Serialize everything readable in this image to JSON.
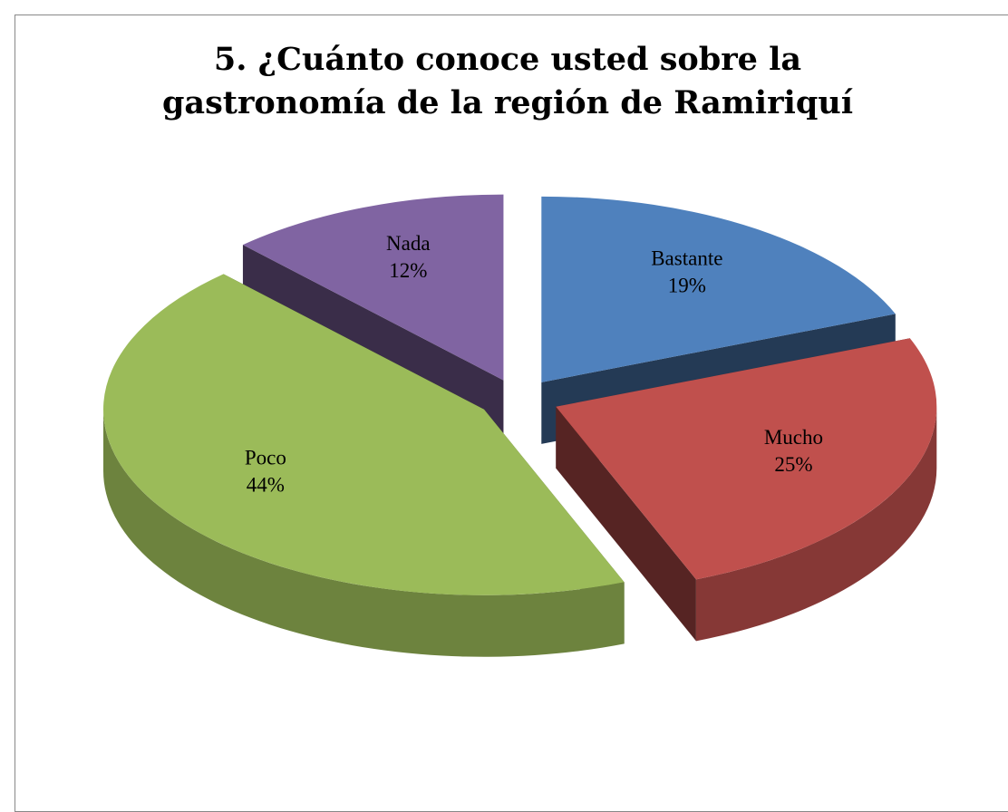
{
  "chart_data": {
    "type": "pie",
    "title": "5. ¿Cuánto conoce usted sobre la gastronomía de la región de Ramiriquí",
    "categories": [
      "Bastante",
      "Mucho",
      "Poco",
      "Nada"
    ],
    "values": [
      19,
      25,
      44,
      12
    ],
    "value_labels": [
      "19%",
      "25%",
      "44%",
      "12%"
    ],
    "colors": [
      "#4f81bd",
      "#c0504d",
      "#9bbb59",
      "#8064a2"
    ]
  }
}
